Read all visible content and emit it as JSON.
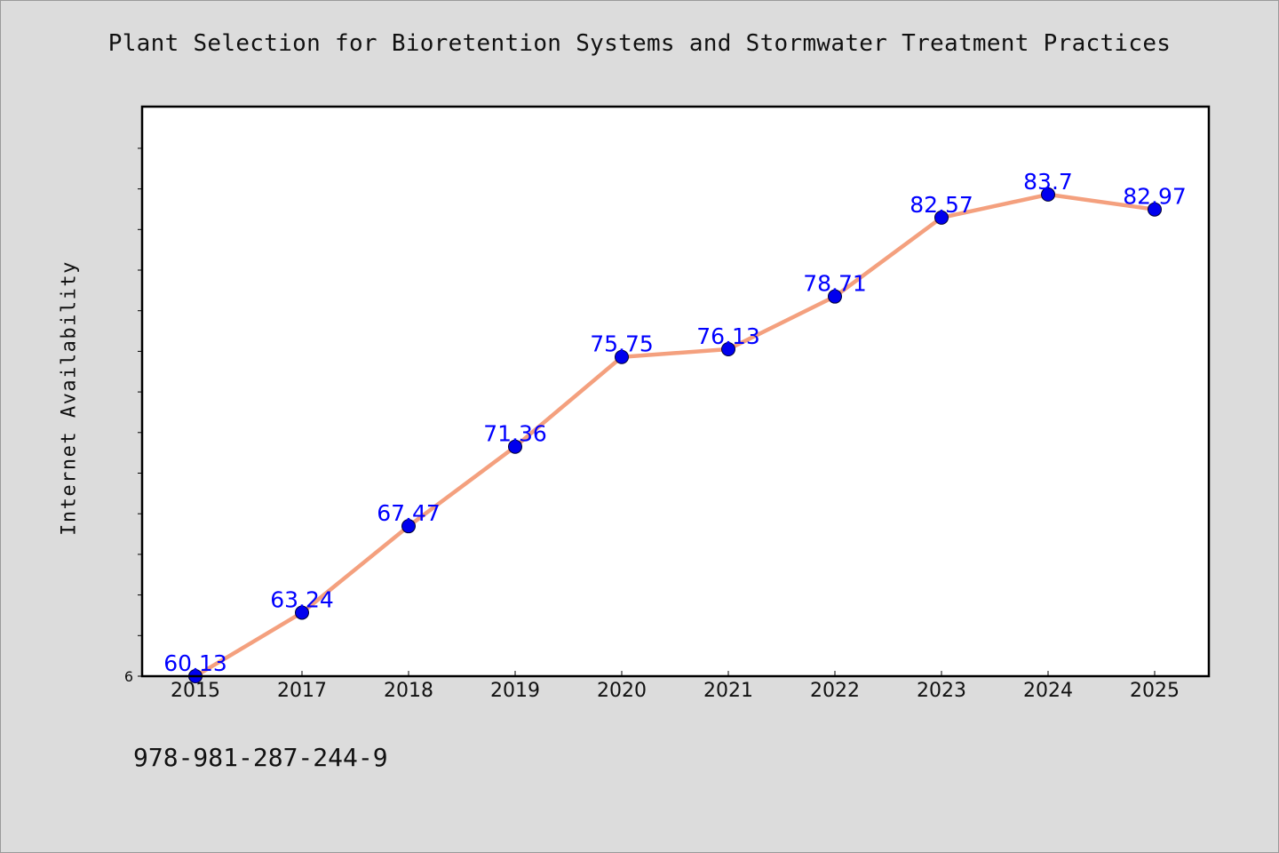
{
  "chart_data": {
    "type": "line",
    "title": "Plant Selection for Bioretention Systems and Stormwater Treatment Practices",
    "xlabel": "",
    "ylabel": "Internet Availability",
    "categories": [
      "2015",
      "2017",
      "2018",
      "2019",
      "2020",
      "2021",
      "2022",
      "2023",
      "2024",
      "2025"
    ],
    "series": [
      {
        "values": [
          60.13,
          63.24,
          67.47,
          71.36,
          75.75,
          76.13,
          78.71,
          82.57,
          83.7,
          82.97
        ]
      }
    ],
    "data_labels": [
      "60.13",
      "63.24",
      "67.47",
      "71.36",
      "75.75",
      "76.13",
      "78.71",
      "82.57",
      "83.7",
      "82.97"
    ],
    "ylim": [
      60.13,
      88.0
    ],
    "y_tick_label": "6",
    "grid": false,
    "line_color": "#f4a07e",
    "marker_color": "#0000ee",
    "label_color": "#0000ff"
  },
  "footer_text": "978-981-287-244-9"
}
